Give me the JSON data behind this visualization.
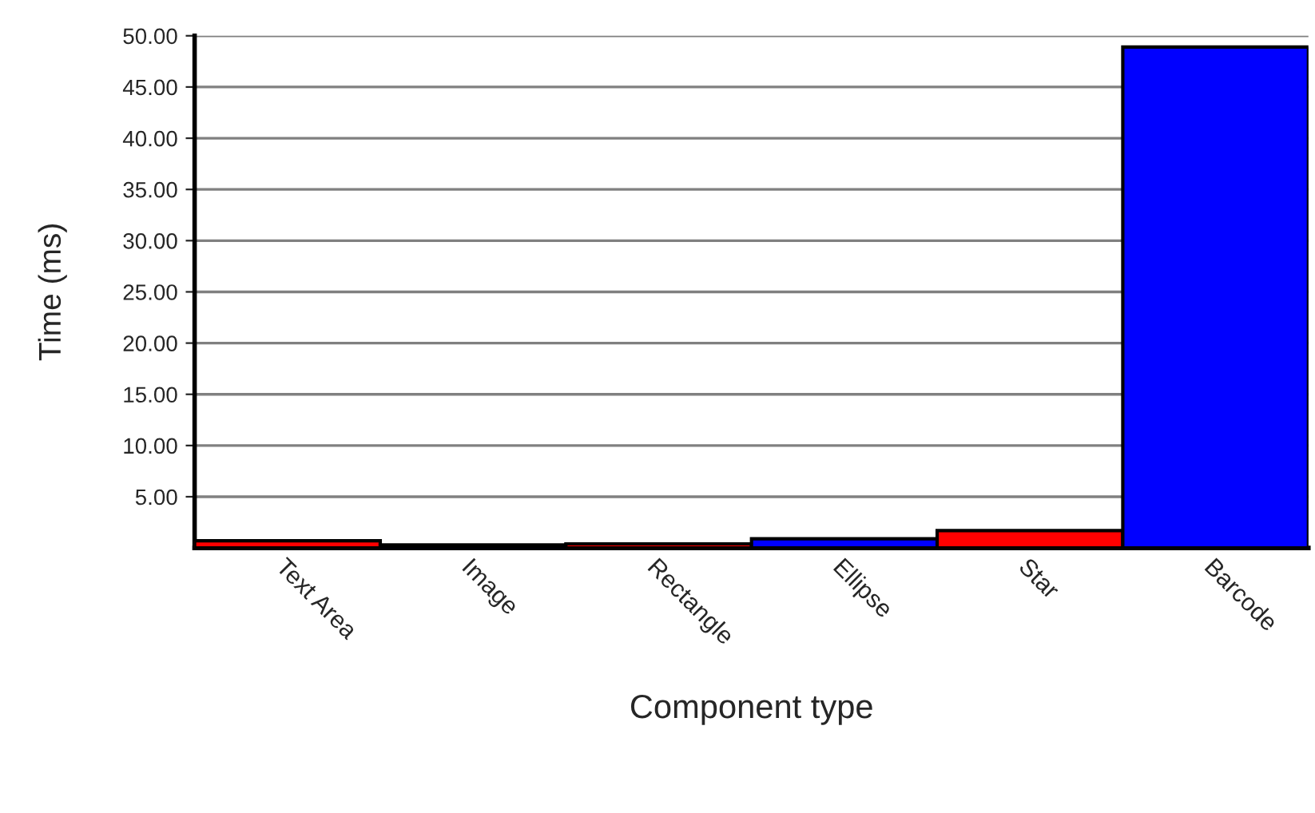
{
  "chart_data": {
    "type": "bar",
    "xlabel": "Component type",
    "ylabel": "Time (ms)",
    "categories": [
      "Text Area",
      "Image",
      "Rectangle",
      "Ellipse",
      "Star",
      "Barcode"
    ],
    "values": [
      0.7,
      0.3,
      0.4,
      0.9,
      1.7,
      48.9
    ],
    "colors": [
      "#ff0000",
      "#0000ff",
      "#ff0000",
      "#0000ff",
      "#ff0000",
      "#0000ff"
    ],
    "ylim": [
      0,
      50
    ],
    "yticks": [
      {
        "value": 5,
        "label": "5.00"
      },
      {
        "value": 10,
        "label": "10.00"
      },
      {
        "value": 15,
        "label": "15.00"
      },
      {
        "value": 20,
        "label": "20.00"
      },
      {
        "value": 25,
        "label": "25.00"
      },
      {
        "value": 30,
        "label": "30.00"
      },
      {
        "value": 35,
        "label": "35.00"
      },
      {
        "value": 40,
        "label": "40.00"
      },
      {
        "value": 45,
        "label": "45.00"
      },
      {
        "value": 50,
        "label": "50.00"
      }
    ],
    "grid": "y",
    "legend": false
  }
}
